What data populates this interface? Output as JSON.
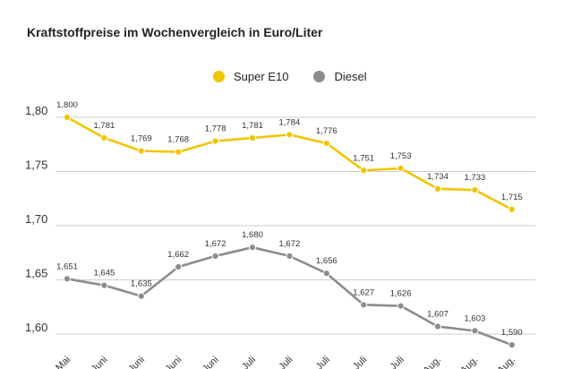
{
  "chart_data": {
    "type": "line",
    "title": "Kraftstoffpreise im Wochenvergleich in Euro/Liter",
    "categories": [
      "Mai",
      "Juni",
      "Juni",
      "Juni",
      "Juni",
      "Juli",
      "Juli",
      "Juli",
      "Juli",
      "Juli",
      "Aug.",
      "Aug.",
      "Aug."
    ],
    "series": [
      {
        "name": "Super E10",
        "color": "#f2c500",
        "values": [
          1.8,
          1.781,
          1.769,
          1.768,
          1.778,
          1.781,
          1.784,
          1.776,
          1.751,
          1.753,
          1.734,
          1.733,
          1.715
        ],
        "labels": [
          "1,800",
          "1,781",
          "1,769",
          "1,768",
          "1,778",
          "1,781",
          "1,784",
          "1,776",
          "1,751",
          "1,753",
          "1,734",
          "1,733",
          "1,715"
        ]
      },
      {
        "name": "Diesel",
        "color": "#8c8c8c",
        "values": [
          1.651,
          1.645,
          1.635,
          1.662,
          1.672,
          1.68,
          1.672,
          1.656,
          1.627,
          1.626,
          1.607,
          1.603,
          1.59
        ],
        "labels": [
          "1,651",
          "1,645",
          "1,635",
          "1,662",
          "1,672",
          "1,680",
          "1,672",
          "1,656",
          "1,627",
          "1,626",
          "1,607",
          "1,603",
          "1,590"
        ]
      }
    ],
    "y_ticks": [
      1.8,
      1.75,
      1.7,
      1.65,
      1.6
    ],
    "y_tick_labels": [
      "1,80",
      "1,75",
      "1,70",
      "1,65",
      "1,60"
    ],
    "ylim": [
      1.59,
      1.81
    ],
    "grid": "horizontal",
    "legend_position": "top-center",
    "xlabel": "",
    "ylabel": ""
  }
}
